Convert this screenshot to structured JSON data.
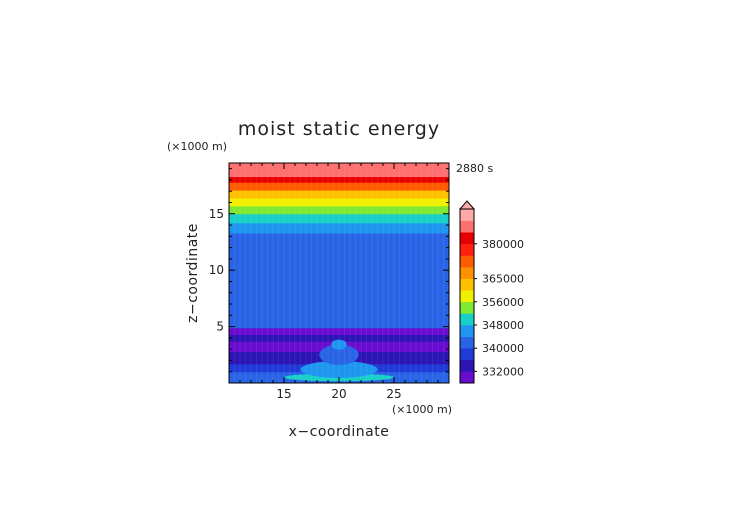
{
  "chart_data": {
    "type": "heatmap",
    "title": "moist static energy",
    "time_label": "2880 s",
    "xlabel": "x−coordinate",
    "ylabel": "z−coordinate",
    "x_unit": "(×1000 m)",
    "y_unit": "(×1000 m)",
    "xlim": [
      10,
      30
    ],
    "ylim": [
      0,
      19.5
    ],
    "x_ticks": [
      15,
      20,
      25
    ],
    "y_ticks": [
      5,
      10,
      15
    ],
    "colorbar": {
      "levels": [
        328000,
        332000,
        336000,
        340000,
        344000,
        348000,
        352000,
        356000,
        360000,
        365000,
        370000,
        375000,
        380000,
        385000,
        390000
      ],
      "colors": [
        "#6a0cd0",
        "#2d14b4",
        "#1f3ad6",
        "#2a64e6",
        "#1e96f0",
        "#18d0c8",
        "#7ee832",
        "#f0f000",
        "#ffc000",
        "#ff9000",
        "#ff5a00",
        "#ff2010",
        "#e80000",
        "#ff7070",
        "#ffa8a8"
      ],
      "labels": [
        "332000",
        "340000",
        "348000",
        "356000",
        "365000",
        "380000"
      ],
      "label_values": [
        332000,
        340000,
        348000,
        356000,
        365000,
        380000
      ],
      "extend": "max"
    },
    "layers": [
      {
        "z": [
          0,
          0.3
        ],
        "value": 343000
      },
      {
        "z": [
          0.3,
          1.0
        ],
        "value": 341000
      },
      {
        "z": [
          1.0,
          1.7
        ],
        "value": 338000
      },
      {
        "z": [
          1.7,
          2.8
        ],
        "value": 334000
      },
      {
        "z": [
          2.8,
          3.7
        ],
        "value": 330000
      },
      {
        "z": [
          3.7,
          4.3
        ],
        "value": 333000
      },
      {
        "z": [
          4.3,
          4.9
        ],
        "value": 329000
      },
      {
        "z": [
          4.9,
          11.5
        ],
        "value": 340000
      },
      {
        "z": [
          11.5,
          13.3
        ],
        "value": 343000
      },
      {
        "z": [
          13.3,
          14.2
        ],
        "value": 346000
      },
      {
        "z": [
          14.2,
          15.0
        ],
        "value": 350000
      },
      {
        "z": [
          15.0,
          15.7
        ],
        "value": 354000
      },
      {
        "z": [
          15.7,
          16.4
        ],
        "value": 358000
      },
      {
        "z": [
          16.4,
          17.1
        ],
        "value": 363000
      },
      {
        "z": [
          17.1,
          17.8
        ],
        "value": 373000
      },
      {
        "z": [
          17.8,
          18.3
        ],
        "value": 380000
      },
      {
        "z": [
          18.3,
          19.5
        ],
        "value": 387000
      }
    ],
    "plume": [
      {
        "x": 20.0,
        "z": 3.4,
        "width": 1.4,
        "height": 0.9,
        "value": 346000
      },
      {
        "x": 20.0,
        "z": 2.5,
        "width": 3.6,
        "height": 1.8,
        "value": 343000
      },
      {
        "x": 20.0,
        "z": 1.2,
        "width": 7.0,
        "height": 1.5,
        "value": 346000
      },
      {
        "x": 20.0,
        "z": 0.5,
        "width": 10.0,
        "height": 0.7,
        "value": 348000
      }
    ]
  }
}
